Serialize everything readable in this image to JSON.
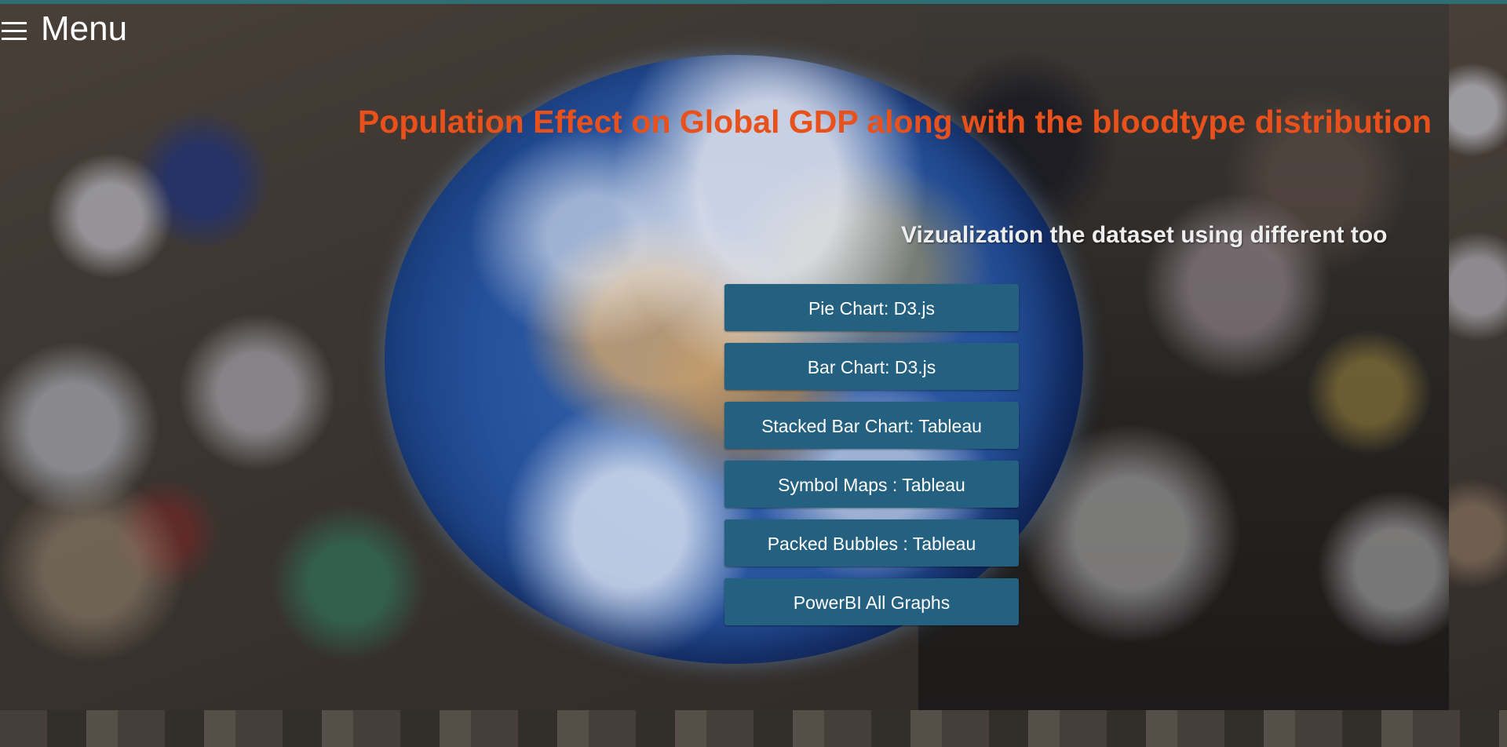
{
  "header": {
    "menu_label": "Menu"
  },
  "main": {
    "title": "Population Effect on Global GDP along with the bloodtype distribution",
    "subtitle": "Vizualization the dataset using different too"
  },
  "buttons": [
    {
      "label": "Pie Chart: D3.js"
    },
    {
      "label": "Bar Chart: D3.js"
    },
    {
      "label": "Stacked Bar Chart: Tableau"
    },
    {
      "label": "Symbol Maps : Tableau"
    },
    {
      "label": "Packed Bubbles : Tableau"
    },
    {
      "label": "PowerBI All Graphs"
    }
  ],
  "colors": {
    "title": "#e8501c",
    "button_bg": "#24607f",
    "button_text": "#ffffff",
    "top_strip": "#2f6f74"
  },
  "icons": {
    "menu": "hamburger-icon"
  }
}
